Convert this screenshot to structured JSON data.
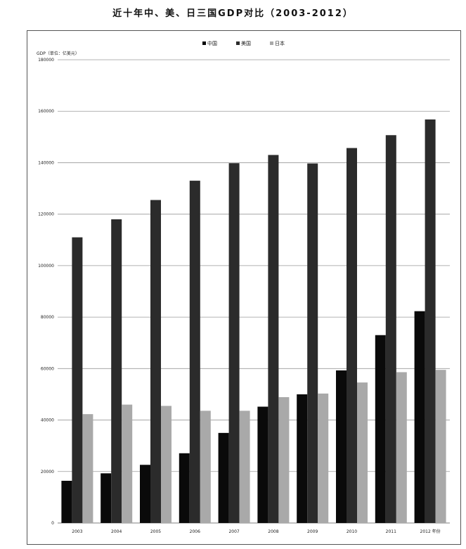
{
  "title": "近十年中、美、日三国GDP对比（2003-2012）",
  "chart_data": {
    "type": "bar",
    "title": "近十年中、美、日三国GDP对比（2003-2012）",
    "ylabel": "GDP（单位：亿美元）",
    "xlabel": "年份",
    "categories": [
      "2003",
      "2004",
      "2005",
      "2006",
      "2007",
      "2008",
      "2009",
      "2010",
      "2011",
      "2012"
    ],
    "x_tick_labels": [
      "2003",
      "2004",
      "2005",
      "2006",
      "2007",
      "2008",
      "2009",
      "2010",
      "2011",
      "2012 年份"
    ],
    "ylim": [
      0,
      180000
    ],
    "yticks": [
      0,
      20000,
      40000,
      60000,
      80000,
      100000,
      120000,
      140000,
      160000,
      180000
    ],
    "grid": true,
    "legend_position": "top-center",
    "series": [
      {
        "name": "中国",
        "color": "#0a0a0a",
        "values": [
          16400,
          19300,
          22600,
          27100,
          35000,
          45200,
          50000,
          59300,
          73000,
          82300
        ]
      },
      {
        "name": "美国",
        "color": "#2b2b2b",
        "values": [
          111000,
          118000,
          125500,
          133000,
          139800,
          143000,
          139700,
          145700,
          150700,
          156800
        ]
      },
      {
        "name": "日本",
        "color": "#a9a9a9",
        "values": [
          42300,
          46000,
          45500,
          43600,
          43600,
          48900,
          50300,
          54600,
          58600,
          59500
        ]
      }
    ]
  }
}
